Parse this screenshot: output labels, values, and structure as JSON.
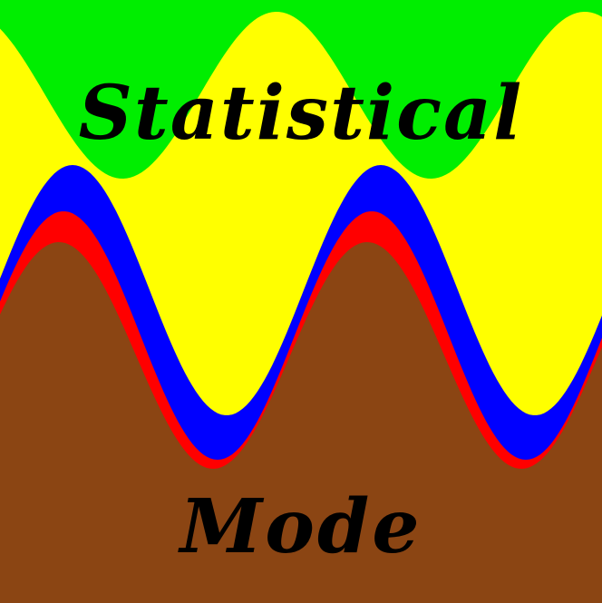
{
  "title": {
    "line1": "Statistical",
    "line2": "Mode"
  },
  "colors": {
    "green": "#00ee00",
    "yellow": "#ffff00",
    "blue": "#0000ff",
    "red": "#ff0000",
    "brown": "#8b4513",
    "text": "#000000"
  }
}
